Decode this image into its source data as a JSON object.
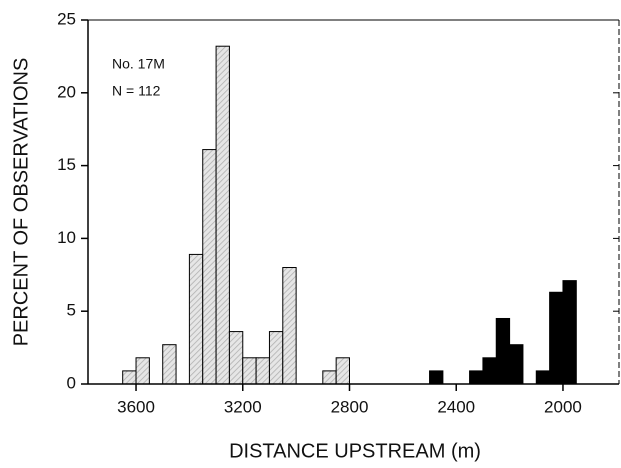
{
  "chart_data": {
    "type": "histogram",
    "annotations": [
      "No. 17M",
      "N = 112"
    ],
    "xlabel": "DISTANCE UPSTREAM (m)",
    "ylabel": "PERCENT OF OBSERVATIONS",
    "bins": [
      3650,
      3600,
      3550,
      3500,
      3450,
      3400,
      3350,
      3300,
      3250,
      3200,
      3150,
      3100,
      3050,
      3000,
      2950,
      2900,
      2850,
      2800,
      2750,
      2700,
      2650,
      2600,
      2550,
      2500,
      2450,
      2400,
      2350,
      2300,
      2250,
      2200,
      2150,
      2100,
      2050,
      2000,
      1950
    ],
    "values": [
      0.9,
      1.8,
      0,
      2.7,
      0,
      8.9,
      16.1,
      23.2,
      3.6,
      1.8,
      1.8,
      3.6,
      8.0,
      0,
      0,
      0.9,
      1.8,
      0,
      0,
      0,
      0,
      0,
      0,
      0.9,
      0,
      0,
      0.9,
      1.8,
      4.5,
      2.7,
      0,
      0.9,
      6.3,
      7.1
    ],
    "colors": [
      "#b0b0b0",
      "#b0b0b0",
      "#b0b0b0",
      "#b0b0b0",
      "#b0b0b0",
      "#b0b0b0",
      "#b0b0b0",
      "#b0b0b0",
      "#b0b0b0",
      "#b0b0b0",
      "#b0b0b0",
      "#b0b0b0",
      "#b0b0b0",
      "#b0b0b0",
      "#b0b0b0",
      "#b0b0b0",
      "#b0b0b0",
      "#000000",
      "#000000",
      "#000000",
      "#000000",
      "#000000",
      "#000000",
      "#000000",
      "#000000",
      "#000000",
      "#000000",
      "#000000",
      "#000000",
      "#000000",
      "#000000",
      "#000000",
      "#000000",
      "#000000"
    ],
    "xlim": [
      3780,
      1790
    ],
    "ylim": [
      0,
      25
    ],
    "xticks": [
      3600,
      3200,
      2800,
      2400,
      2000
    ],
    "yticks": [
      0,
      5,
      10,
      15,
      20,
      25
    ]
  }
}
